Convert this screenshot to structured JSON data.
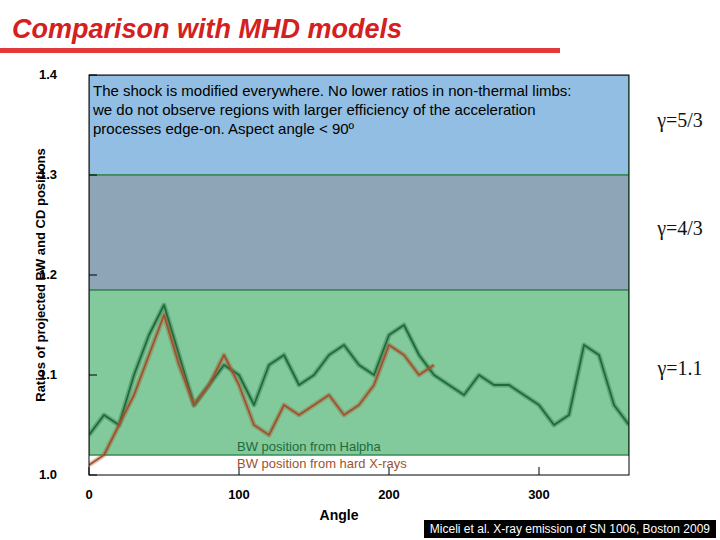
{
  "slide": {
    "title": "Comparison with MHD models",
    "footer": "Miceli et al. X-ray emission of SN 1006, Boston 2009"
  },
  "chart_data": {
    "type": "line",
    "xlabel": "Angle",
    "ylabel": "Ratios of projected BW and CD positions",
    "annotation": "The shock is modified everywhere. No lower ratios in non-thermal limbs: we do not observe regions with larger efficiency of the acceleration processes edge-on. Aspect angle < 90º",
    "xlim": [
      0,
      360
    ],
    "ylim": [
      1.0,
      1.4
    ],
    "xticks": [
      0,
      100,
      200,
      300
    ],
    "yticks": [
      {
        "value": 1.0,
        "label": "1.0"
      },
      1.1,
      1.2,
      1.3,
      1.4
    ],
    "bands": [
      {
        "name": "γ=5/3",
        "range": [
          1.3,
          1.4
        ],
        "color": "#7eb3dd"
      },
      {
        "name": "γ=4/3",
        "range": [
          1.185,
          1.3
        ],
        "color": "#7a95aa"
      },
      {
        "name": "γ=1.1",
        "range": [
          1.02,
          1.185
        ],
        "color": "#6cc08a"
      }
    ],
    "x": [
      0,
      10,
      20,
      30,
      40,
      50,
      60,
      70,
      80,
      90,
      100,
      110,
      120,
      130,
      140,
      150,
      160,
      170,
      180,
      190,
      200,
      210,
      220,
      230,
      240,
      250,
      260,
      270,
      280,
      290,
      300,
      310,
      320,
      330,
      340,
      350,
      360
    ],
    "series": [
      {
        "name": "BW position from Halpha",
        "color": "#1f6b3a",
        "values": [
          1.04,
          1.06,
          1.05,
          1.1,
          1.14,
          1.17,
          1.12,
          1.07,
          1.09,
          1.11,
          1.1,
          1.07,
          1.11,
          1.12,
          1.09,
          1.1,
          1.12,
          1.13,
          1.11,
          1.1,
          1.14,
          1.15,
          1.12,
          1.1,
          1.09,
          1.08,
          1.1,
          1.09,
          1.09,
          1.08,
          1.07,
          1.05,
          1.06,
          1.13,
          1.12,
          1.07,
          1.05
        ]
      },
      {
        "name": "BW position from hard X-rays",
        "color": "#a0522d",
        "values": [
          1.01,
          1.02,
          1.05,
          1.08,
          1.12,
          1.16,
          1.11,
          1.07,
          1.09,
          1.12,
          1.09,
          1.05,
          1.04,
          1.07,
          1.06,
          1.07,
          1.08,
          1.06,
          1.07,
          1.09,
          1.13,
          1.12,
          1.1,
          1.11,
          null,
          null,
          null,
          null,
          null,
          null,
          null,
          null,
          null,
          null,
          null,
          null,
          null
        ]
      }
    ]
  }
}
